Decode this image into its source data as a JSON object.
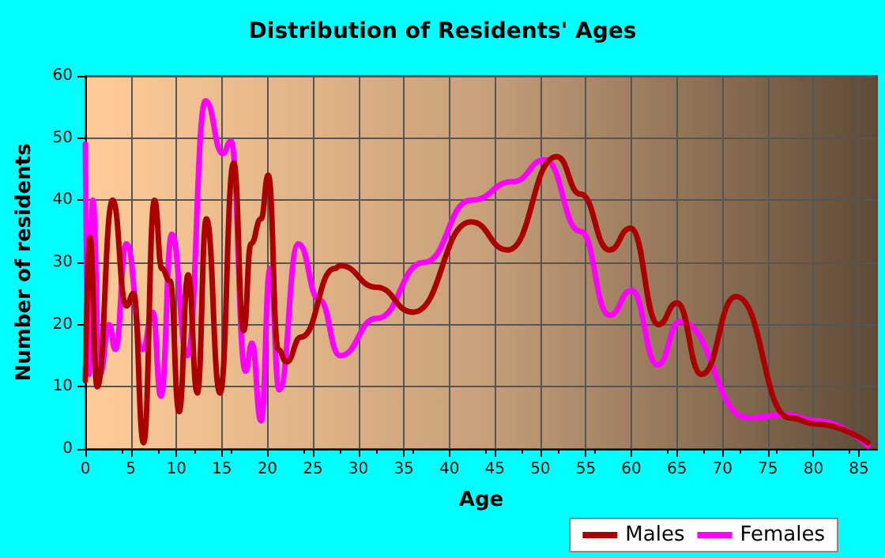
{
  "chart_data": {
    "type": "line",
    "title": "Distribution of Residents' Ages",
    "xlabel": "Age",
    "ylabel": "Number of residents",
    "xlim": [
      0,
      87
    ],
    "xticks": [
      0,
      5,
      10,
      15,
      20,
      25,
      30,
      35,
      40,
      45,
      50,
      55,
      60,
      65,
      70,
      75,
      80,
      85
    ],
    "ylim": [
      0,
      60
    ],
    "yticks": [
      0,
      10,
      20,
      30,
      40,
      50,
      60
    ],
    "grid": true,
    "legend": "bottom right",
    "marker": "none",
    "line_style": "solid",
    "series": [
      {
        "name": "Males",
        "color": "#aa0000",
        "x": [
          0,
          0.5,
          1.3,
          3,
          4.5,
          5.3,
          6.4,
          7.6,
          8.4,
          9.3,
          10.3,
          11.3,
          12.3,
          13.3,
          14.8,
          16.3,
          17.4,
          18.2,
          19.3,
          20.1,
          21.2,
          22.1,
          23.7,
          27.4,
          28,
          32,
          36,
          42.4,
          46.4,
          51.8,
          54.4,
          57.6,
          59.9,
          63,
          65,
          67.7,
          71.5,
          77.4,
          80.3,
          86
        ],
        "values": [
          11,
          34,
          10,
          40,
          23,
          25,
          1,
          40,
          29,
          27,
          6,
          28,
          9,
          37,
          9,
          46,
          19,
          33,
          37,
          44,
          16,
          14,
          18,
          29,
          29.5,
          26,
          22,
          36.5,
          32,
          47,
          41,
          32,
          35.5,
          20,
          23.5,
          12,
          24.5,
          5,
          4,
          1
        ]
      },
      {
        "name": "Females",
        "color": "#ff00ff",
        "x": [
          0,
          0.4,
          0.8,
          1.6,
          2.6,
          3.3,
          4.5,
          6.3,
          7.4,
          8.3,
          9.5,
          11.2,
          13.2,
          15.1,
          16,
          17.6,
          18.3,
          19.3,
          20.3,
          21.3,
          23.4,
          25.7,
          28,
          32,
          37.2,
          42.4,
          47,
          50.5,
          54.4,
          57.6,
          60,
          62.9,
          65.3,
          72.8,
          76.9,
          80.3,
          86
        ],
        "values": [
          49,
          12,
          40,
          12,
          20,
          16,
          33,
          16,
          22,
          8.5,
          34.5,
          15,
          56,
          47.5,
          49.5,
          12.5,
          17,
          4.5,
          29,
          9.5,
          33,
          24,
          15,
          21,
          30,
          40,
          43,
          46.5,
          35,
          21.5,
          25.5,
          13.5,
          20.5,
          5,
          5.5,
          4.5,
          0.5
        ]
      }
    ]
  }
}
